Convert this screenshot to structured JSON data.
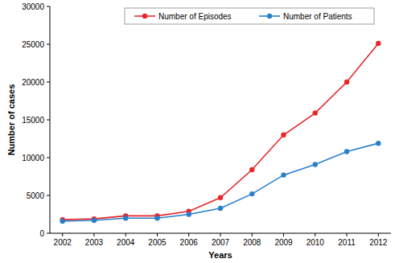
{
  "chart_data": {
    "type": "line",
    "x_label": "Years",
    "y_label": "Number of cases",
    "x": [
      2002,
      2003,
      2004,
      2005,
      2006,
      2007,
      2008,
      2009,
      2010,
      2011,
      2012
    ],
    "series": [
      {
        "name": "Number of Episodes",
        "color": "#e8262a",
        "marker": "circle",
        "line_style": "solid",
        "values": [
          1800,
          1900,
          2300,
          2300,
          2900,
          4700,
          8400,
          13000,
          15900,
          20000,
          25100
        ]
      },
      {
        "name": "Number of Patients",
        "color": "#2a7fc9",
        "marker": "circle",
        "line_style": "solid",
        "values": [
          1600,
          1700,
          2000,
          2000,
          2500,
          3300,
          5200,
          7700,
          9100,
          10800,
          11900
        ]
      }
    ],
    "xlim": [
      2001.6,
      2012.4
    ],
    "xticks": [
      2002,
      2003,
      2004,
      2005,
      2006,
      2007,
      2008,
      2009,
      2010,
      2011,
      2012
    ],
    "ylim": [
      0,
      30000
    ],
    "yticks": [
      0,
      5000,
      10000,
      15000,
      20000,
      25000,
      30000
    ],
    "grid": false,
    "legend": "top"
  }
}
